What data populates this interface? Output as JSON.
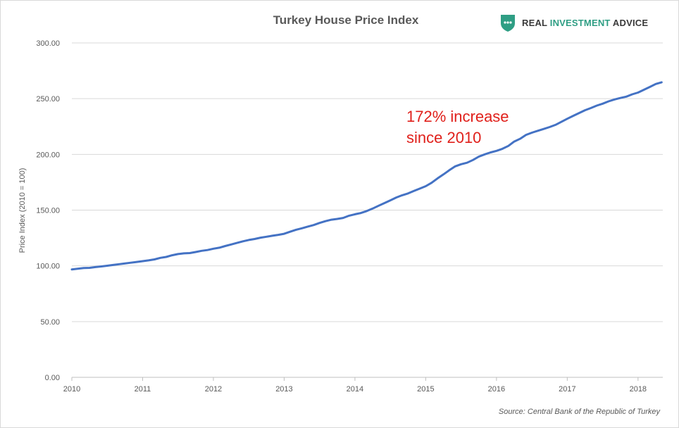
{
  "header": {
    "title": "Turkey House Price Index",
    "brand_word1": "REAL",
    "brand_word2": "INVESTMENT",
    "brand_word3": "ADVICE"
  },
  "annotation": {
    "line1": "172% increase",
    "line2": "since 2010"
  },
  "source": "Source: Central Bank of the Republic of Turkey",
  "colors": {
    "line": "#4472c4",
    "annotation": "#e0201b",
    "brand_accent": "#2f9e84",
    "grid": "#d9d9d9"
  },
  "chart_data": {
    "type": "line",
    "title": "Turkey House Price Index",
    "xlabel": "",
    "ylabel": "Price Index (2010 = 100)",
    "ylim": [
      0,
      300
    ],
    "xlim": [
      2010.0,
      2018.35
    ],
    "y_ticks": [
      "0.00",
      "50.00",
      "100.00",
      "150.00",
      "200.00",
      "250.00",
      "300.00"
    ],
    "x_ticks": [
      "2010",
      "2011",
      "2012",
      "2013",
      "2014",
      "2015",
      "2016",
      "2017",
      "2018"
    ],
    "grid": true,
    "legend": "none",
    "series": [
      {
        "x": [
          2010.0,
          2010.083,
          2010.167,
          2010.25,
          2010.333,
          2010.417,
          2010.5,
          2010.583,
          2010.667,
          2010.75,
          2010.833,
          2010.917,
          2011.0,
          2011.083,
          2011.167,
          2011.25,
          2011.333,
          2011.417,
          2011.5,
          2011.583,
          2011.667,
          2011.75,
          2011.833,
          2011.917,
          2012.0,
          2012.083,
          2012.167,
          2012.25,
          2012.333,
          2012.417,
          2012.5,
          2012.583,
          2012.667,
          2012.75,
          2012.833,
          2012.917,
          2013.0,
          2013.083,
          2013.167,
          2013.25,
          2013.333,
          2013.417,
          2013.5,
          2013.583,
          2013.667,
          2013.75,
          2013.833,
          2013.917,
          2014.0,
          2014.083,
          2014.167,
          2014.25,
          2014.333,
          2014.417,
          2014.5,
          2014.583,
          2014.667,
          2014.75,
          2014.833,
          2014.917,
          2015.0,
          2015.083,
          2015.167,
          2015.25,
          2015.333,
          2015.417,
          2015.5,
          2015.583,
          2015.667,
          2015.75,
          2015.833,
          2015.917,
          2016.0,
          2016.083,
          2016.167,
          2016.25,
          2016.333,
          2016.417,
          2016.5,
          2016.583,
          2016.667,
          2016.75,
          2016.833,
          2016.917,
          2017.0,
          2017.083,
          2017.167,
          2017.25,
          2017.333,
          2017.417,
          2017.5,
          2017.583,
          2017.667,
          2017.75,
          2017.833,
          2017.917,
          2018.0,
          2018.083,
          2018.167,
          2018.25,
          2018.333
        ],
        "values": [
          96.8,
          97.4,
          98.0,
          98.2,
          98.9,
          99.5,
          100.1,
          100.8,
          101.5,
          102.1,
          102.8,
          103.5,
          104.2,
          104.9,
          105.8,
          107.2,
          108.0,
          109.5,
          110.6,
          111.2,
          111.5,
          112.4,
          113.5,
          114.2,
          115.4,
          116.3,
          117.8,
          119.2,
          120.6,
          122.0,
          123.2,
          124.1,
          125.3,
          126.1,
          127.0,
          127.8,
          128.8,
          130.6,
          132.4,
          133.7,
          135.2,
          136.6,
          138.5,
          140.1,
          141.4,
          142.1,
          143.0,
          145.0,
          146.3,
          147.4,
          149.2,
          151.4,
          153.9,
          156.3,
          158.8,
          161.3,
          163.3,
          165.0,
          167.2,
          169.3,
          171.5,
          174.5,
          178.5,
          182.0,
          185.8,
          189.3,
          191.2,
          192.5,
          195.0,
          198.0,
          200.0,
          201.8,
          203.2,
          205.0,
          207.6,
          211.5,
          214.0,
          217.5,
          219.5,
          221.2,
          222.8,
          224.5,
          226.5,
          229.2,
          232.0,
          234.6,
          237.1,
          239.6,
          241.6,
          243.8,
          245.5,
          247.6,
          249.3,
          250.6,
          251.8,
          253.9,
          255.5,
          258.0,
          260.5,
          263.2,
          264.7
        ]
      }
    ]
  }
}
